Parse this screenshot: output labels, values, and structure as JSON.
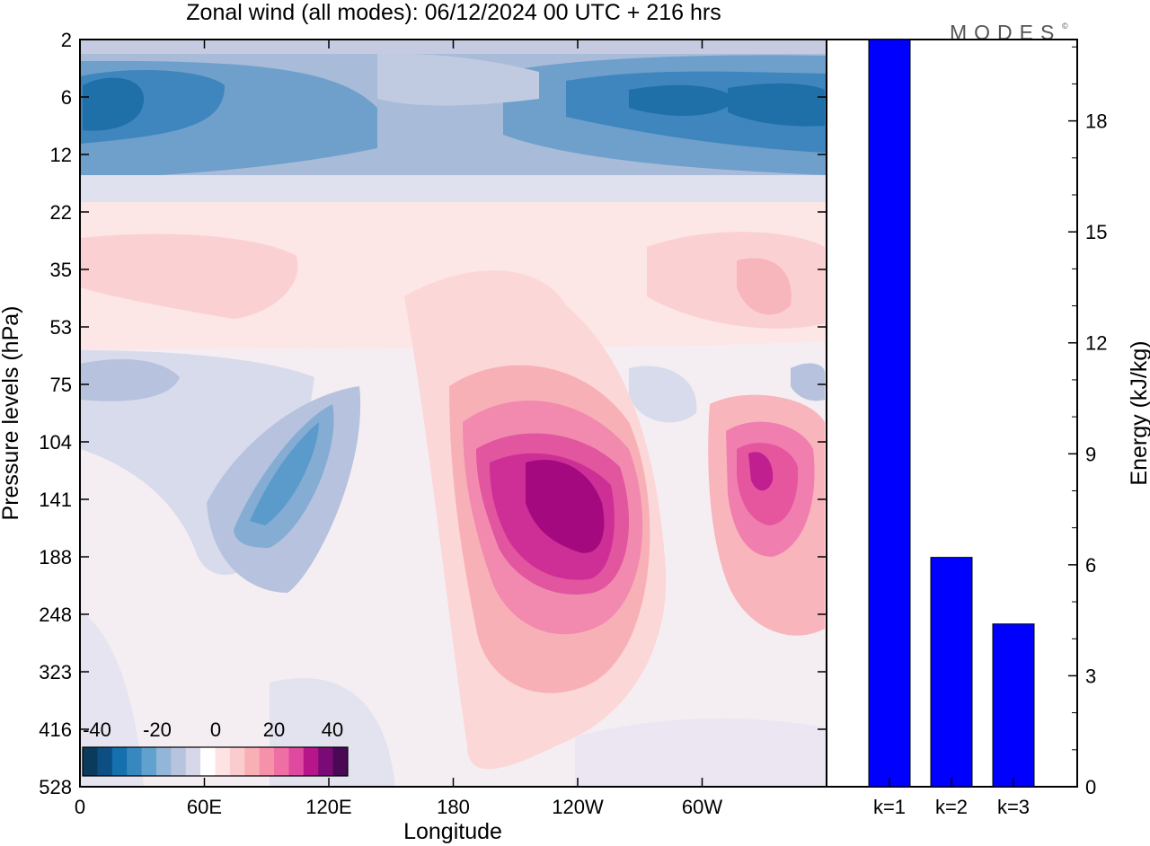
{
  "title": "Zonal wind (all modes):  06/12/2024  00 UTC  + 216 hrs",
  "logo": "MODES",
  "logo_mark": "©",
  "chart_data": [
    {
      "type": "heatmap",
      "title": "Zonal wind (all modes):  06/12/2024  00 UTC  + 216 hrs",
      "xlabel": "Longitude",
      "ylabel": "Pressure levels (hPa)",
      "x_ticks": [
        "0",
        "60E",
        "120E",
        "180",
        "120W",
        "60W"
      ],
      "y_ticks": [
        "2",
        "6",
        "12",
        "22",
        "35",
        "53",
        "75",
        "104",
        "141",
        "188",
        "248",
        "323",
        "416",
        "528"
      ],
      "colorbar": {
        "tick_labels": [
          "-40",
          "-20",
          "0",
          "20",
          "40"
        ],
        "range": [
          -45,
          45
        ],
        "colors": [
          "#0a3a5c",
          "#0d4f82",
          "#1570ae",
          "#3688bf",
          "#61a1cd",
          "#93b5d8",
          "#b8c3de",
          "#d6d8ea",
          "#ffffff",
          "#fde3e3",
          "#fbcccd",
          "#f8b0b5",
          "#f591a9",
          "#ef6ea3",
          "#df4aa0",
          "#b7168b",
          "#7a0a75",
          "#4a0855"
        ]
      },
      "features": [
        {
          "region": "upper stratosphere, easterly band",
          "lon_range": [
            0,
            360
          ],
          "pressure_range": [
            2,
            18
          ],
          "value_min": -35
        },
        {
          "region": "strongest westerly jet",
          "lon_center": 250,
          "pressure_center": 141,
          "value_max": 40
        },
        {
          "region": "secondary westerly jet",
          "lon_center": 335,
          "pressure_center": 125,
          "value_max": 30
        },
        {
          "region": "easterly tongue",
          "lon_center": 95,
          "pressure_center": 130,
          "value_min": -20
        }
      ]
    },
    {
      "type": "bar",
      "categories": [
        "k=1",
        "k=2",
        "k=3"
      ],
      "values": [
        20.2,
        6.2,
        4.4
      ],
      "ylabel": "Energy (kJ/kg)",
      "y_ticks": [
        "0",
        "3",
        "6",
        "9",
        "12",
        "15",
        "18"
      ],
      "ylim": [
        0,
        20.2
      ],
      "bar_color": "#0000ff"
    }
  ]
}
